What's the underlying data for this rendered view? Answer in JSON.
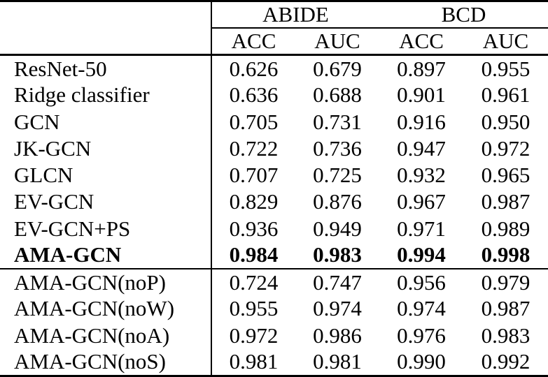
{
  "table": {
    "description_colors": {
      "text": "#000000",
      "background": "#ffffff",
      "rules": "#000000"
    },
    "col_groups": [
      {
        "label": "ABIDE"
      },
      {
        "label": "BCD"
      }
    ],
    "sub_headers": [
      "ACC",
      "AUC",
      "ACC",
      "AUC"
    ],
    "sections": [
      {
        "rows": [
          {
            "label": "ResNet-50",
            "bold": false,
            "values": [
              "0.626",
              "0.679",
              "0.897",
              "0.955"
            ]
          },
          {
            "label": "Ridge classifier",
            "bold": false,
            "values": [
              "0.636",
              "0.688",
              "0.901",
              "0.961"
            ]
          },
          {
            "label": "GCN",
            "bold": false,
            "values": [
              "0.705",
              "0.731",
              "0.916",
              "0.950"
            ]
          },
          {
            "label": "JK-GCN",
            "bold": false,
            "values": [
              "0.722",
              "0.736",
              "0.947",
              "0.972"
            ]
          },
          {
            "label": "GLCN",
            "bold": false,
            "values": [
              "0.707",
              "0.725",
              "0.932",
              "0.965"
            ]
          },
          {
            "label": "EV-GCN",
            "bold": false,
            "values": [
              "0.829",
              "0.876",
              "0.967",
              "0.987"
            ]
          },
          {
            "label": "EV-GCN+PS",
            "bold": false,
            "values": [
              "0.936",
              "0.949",
              "0.971",
              "0.989"
            ]
          },
          {
            "label": "AMA-GCN",
            "bold": true,
            "values": [
              "0.984",
              "0.983",
              "0.994",
              "0.998"
            ]
          }
        ]
      },
      {
        "rows": [
          {
            "label": "AMA-GCN(noP)",
            "bold": false,
            "values": [
              "0.724",
              "0.747",
              "0.956",
              "0.979"
            ]
          },
          {
            "label": "AMA-GCN(noW)",
            "bold": false,
            "values": [
              "0.955",
              "0.974",
              "0.974",
              "0.987"
            ]
          },
          {
            "label": "AMA-GCN(noA)",
            "bold": false,
            "values": [
              "0.972",
              "0.986",
              "0.976",
              "0.983"
            ]
          },
          {
            "label": "AMA-GCN(noS)",
            "bold": false,
            "values": [
              "0.981",
              "0.981",
              "0.990",
              "0.992"
            ]
          }
        ]
      }
    ]
  }
}
